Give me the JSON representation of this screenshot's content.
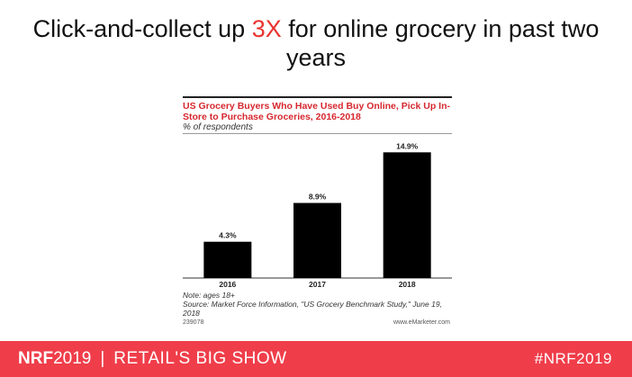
{
  "slide": {
    "title_before": "Click-and-collect up ",
    "title_accent": "3X",
    "title_after": " for online grocery in past two years"
  },
  "colors": {
    "accent_red": "#e8342f",
    "footer_bg": "#ef3e4a",
    "bar_fill": "#000000",
    "chart_title": "#d6282e"
  },
  "chart_data": {
    "type": "bar",
    "title": "US Grocery Buyers Who Have Used Buy Online, Pick Up In-Store to Purchase Groceries, 2016-2018",
    "subtitle": "% of respondents",
    "categories": [
      "2016",
      "2017",
      "2018"
    ],
    "values": [
      4.3,
      8.9,
      14.9
    ],
    "value_labels": [
      "4.3%",
      "8.9%",
      "14.9%"
    ],
    "ylim": [
      0,
      16
    ],
    "grid": false,
    "legend": "none",
    "note": "Note: ages 18+",
    "source": "Source: Market Force Information, \"US Grocery Benchmark Study,\" June 19, 2018",
    "chart_id": "239078",
    "publisher": "www.eMarketer.com"
  },
  "footer": {
    "brand_name": "NRF",
    "brand_year": "2019",
    "separator": "|",
    "tagline": "RETAIL'S BIG SHOW",
    "hashtag": "#NRF2019"
  }
}
